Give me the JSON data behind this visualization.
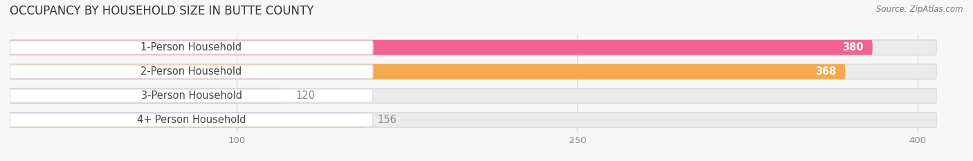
{
  "title": "OCCUPANCY BY HOUSEHOLD SIZE IN BUTTE COUNTY",
  "source": "Source: ZipAtlas.com",
  "categories": [
    "1-Person Household",
    "2-Person Household",
    "3-Person Household",
    "4+ Person Household"
  ],
  "values": [
    380,
    368,
    120,
    156
  ],
  "bar_colors": [
    "#F06292",
    "#F5A94E",
    "#F4A8A8",
    "#A8C8E8"
  ],
  "background_color": "#F7F7F7",
  "bar_bg_color": "#EBEBEB",
  "xlim_max": 420,
  "xticks": [
    100,
    250,
    400
  ],
  "label_fontsize": 10.5,
  "title_fontsize": 12,
  "bar_height": 0.62,
  "value_threshold": 200,
  "label_box_color": "#FFFFFF",
  "label_text_color": "#444444",
  "value_text_color_inside": "#FFFFFF",
  "value_text_color_outside": "#888888",
  "grid_color": "#DDDDDD",
  "row_bg_color": "#F0F0F0"
}
